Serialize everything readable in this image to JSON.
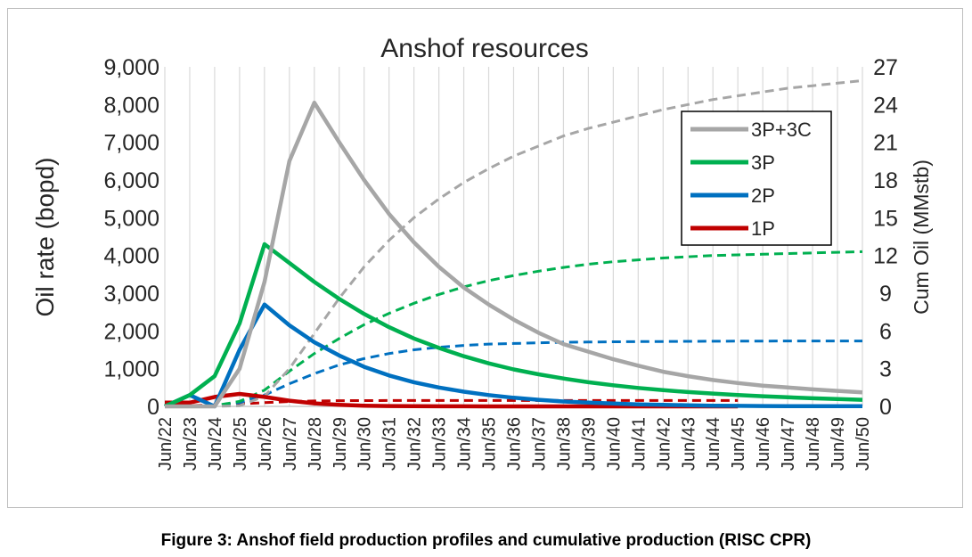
{
  "chart_data": {
    "type": "line",
    "title": "Anshof resources",
    "ylabel": "Oil rate (bopd)",
    "y2label": "Cum Oil (MMstb)",
    "ylim": [
      0,
      9000
    ],
    "y2lim": [
      0,
      27
    ],
    "xlim": [
      "Jun/22",
      "Jun/50"
    ],
    "x_ticks": [
      "Jun/22",
      "Jun/23",
      "Jun/24",
      "Jun/25",
      "Jun/26",
      "Jun/27",
      "Jun/28",
      "Jun/29",
      "Jun/30",
      "Jun/31",
      "Jun/32",
      "Jun/33",
      "Jun/34",
      "Jun/35",
      "Jun/36",
      "Jun/37",
      "Jun/38",
      "Jun/39",
      "Jun/40",
      "Jun/41",
      "Jun/42",
      "Jun/43",
      "Jun/44",
      "Jun/45",
      "Jun/46",
      "Jun/47",
      "Jun/48",
      "Jun/49",
      "Jun/50"
    ],
    "y_ticks": [
      "0",
      "1,000",
      "2,000",
      "3,000",
      "4,000",
      "5,000",
      "6,000",
      "7,000",
      "8,000",
      "9,000"
    ],
    "y2_ticks": [
      "0",
      "3",
      "6",
      "9",
      "12",
      "15",
      "18",
      "21",
      "24",
      "27"
    ],
    "grid": "vertical",
    "legend_position": "top-right",
    "series": [
      {
        "name": "3P+3C",
        "color": "#a6a6a6",
        "rate": [
          [
            "Jun/22",
            0
          ],
          [
            "Jun/23",
            0
          ],
          [
            "Jun/24",
            0
          ],
          [
            "Jun/25",
            1000
          ],
          [
            "Jun/26",
            3300
          ],
          [
            "Jun/27",
            6500
          ],
          [
            "Jun/28",
            8050
          ],
          [
            "Jun/29",
            7000
          ],
          [
            "Jun/30",
            6000
          ],
          [
            "Jun/31",
            5100
          ],
          [
            "Jun/32",
            4350
          ],
          [
            "Jun/33",
            3700
          ],
          [
            "Jun/34",
            3150
          ],
          [
            "Jun/35",
            2700
          ],
          [
            "Jun/36",
            2300
          ],
          [
            "Jun/37",
            1950
          ],
          [
            "Jun/38",
            1650
          ],
          [
            "Jun/39",
            1450
          ],
          [
            "Jun/40",
            1250
          ],
          [
            "Jun/41",
            1080
          ],
          [
            "Jun/42",
            920
          ],
          [
            "Jun/43",
            800
          ],
          [
            "Jun/44",
            700
          ],
          [
            "Jun/45",
            620
          ],
          [
            "Jun/46",
            550
          ],
          [
            "Jun/47",
            500
          ],
          [
            "Jun/48",
            450
          ],
          [
            "Jun/49",
            410
          ],
          [
            "Jun/50",
            370
          ]
        ],
        "cum": [
          [
            "Jun/22",
            0
          ],
          [
            "Jun/23",
            0
          ],
          [
            "Jun/24",
            0
          ],
          [
            "Jun/25",
            0.05
          ],
          [
            "Jun/26",
            0.8
          ],
          [
            "Jun/27",
            3.0
          ],
          [
            "Jun/28",
            5.8
          ],
          [
            "Jun/29",
            8.6
          ],
          [
            "Jun/30",
            11.1
          ],
          [
            "Jun/31",
            13.2
          ],
          [
            "Jun/32",
            15.0
          ],
          [
            "Jun/33",
            16.5
          ],
          [
            "Jun/34",
            17.8
          ],
          [
            "Jun/35",
            18.9
          ],
          [
            "Jun/36",
            19.9
          ],
          [
            "Jun/37",
            20.7
          ],
          [
            "Jun/38",
            21.5
          ],
          [
            "Jun/39",
            22.1
          ],
          [
            "Jun/40",
            22.6
          ],
          [
            "Jun/41",
            23.1
          ],
          [
            "Jun/42",
            23.6
          ],
          [
            "Jun/43",
            24.0
          ],
          [
            "Jun/44",
            24.4
          ],
          [
            "Jun/45",
            24.7
          ],
          [
            "Jun/46",
            25.0
          ],
          [
            "Jun/47",
            25.3
          ],
          [
            "Jun/48",
            25.5
          ],
          [
            "Jun/49",
            25.7
          ],
          [
            "Jun/50",
            25.9
          ]
        ]
      },
      {
        "name": "3P",
        "color": "#00b050",
        "rate": [
          [
            "Jun/22",
            0
          ],
          [
            "Jun/23",
            300
          ],
          [
            "Jun/24",
            800
          ],
          [
            "Jun/25",
            2200
          ],
          [
            "Jun/26",
            4300
          ],
          [
            "Jun/27",
            3800
          ],
          [
            "Jun/28",
            3300
          ],
          [
            "Jun/29",
            2850
          ],
          [
            "Jun/30",
            2450
          ],
          [
            "Jun/31",
            2100
          ],
          [
            "Jun/32",
            1800
          ],
          [
            "Jun/33",
            1550
          ],
          [
            "Jun/34",
            1330
          ],
          [
            "Jun/35",
            1140
          ],
          [
            "Jun/36",
            980
          ],
          [
            "Jun/37",
            850
          ],
          [
            "Jun/38",
            740
          ],
          [
            "Jun/39",
            640
          ],
          [
            "Jun/40",
            560
          ],
          [
            "Jun/41",
            490
          ],
          [
            "Jun/42",
            430
          ],
          [
            "Jun/43",
            380
          ],
          [
            "Jun/44",
            340
          ],
          [
            "Jun/45",
            300
          ],
          [
            "Jun/46",
            270
          ],
          [
            "Jun/47",
            240
          ],
          [
            "Jun/48",
            215
          ],
          [
            "Jun/49",
            195
          ],
          [
            "Jun/50",
            175
          ]
        ],
        "cum": [
          [
            "Jun/22",
            0
          ],
          [
            "Jun/23",
            0
          ],
          [
            "Jun/24",
            0.05
          ],
          [
            "Jun/25",
            0.4
          ],
          [
            "Jun/26",
            1.3
          ],
          [
            "Jun/27",
            2.8
          ],
          [
            "Jun/28",
            4.2
          ],
          [
            "Jun/29",
            5.4
          ],
          [
            "Jun/30",
            6.5
          ],
          [
            "Jun/31",
            7.4
          ],
          [
            "Jun/32",
            8.2
          ],
          [
            "Jun/33",
            8.9
          ],
          [
            "Jun/34",
            9.5
          ],
          [
            "Jun/35",
            10.0
          ],
          [
            "Jun/36",
            10.4
          ],
          [
            "Jun/37",
            10.75
          ],
          [
            "Jun/38",
            11.05
          ],
          [
            "Jun/39",
            11.3
          ],
          [
            "Jun/40",
            11.5
          ],
          [
            "Jun/41",
            11.65
          ],
          [
            "Jun/42",
            11.8
          ],
          [
            "Jun/43",
            11.9
          ],
          [
            "Jun/44",
            12.0
          ],
          [
            "Jun/45",
            12.05
          ],
          [
            "Jun/46",
            12.1
          ],
          [
            "Jun/47",
            12.15
          ],
          [
            "Jun/48",
            12.2
          ],
          [
            "Jun/49",
            12.25
          ],
          [
            "Jun/50",
            12.3
          ]
        ]
      },
      {
        "name": "2P",
        "color": "#0070c0",
        "rate": [
          [
            "Jun/22",
            0
          ],
          [
            "Jun/23",
            300
          ],
          [
            "Jun/24",
            0
          ],
          [
            "Jun/25",
            1500
          ],
          [
            "Jun/26",
            2700
          ],
          [
            "Jun/27",
            2150
          ],
          [
            "Jun/28",
            1700
          ],
          [
            "Jun/29",
            1350
          ],
          [
            "Jun/30",
            1050
          ],
          [
            "Jun/31",
            820
          ],
          [
            "Jun/32",
            640
          ],
          [
            "Jun/33",
            500
          ],
          [
            "Jun/34",
            390
          ],
          [
            "Jun/35",
            300
          ],
          [
            "Jun/36",
            230
          ],
          [
            "Jun/37",
            175
          ],
          [
            "Jun/38",
            130
          ],
          [
            "Jun/39",
            100
          ],
          [
            "Jun/40",
            75
          ],
          [
            "Jun/41",
            55
          ],
          [
            "Jun/42",
            40
          ],
          [
            "Jun/43",
            30
          ],
          [
            "Jun/44",
            20
          ],
          [
            "Jun/45",
            15
          ],
          [
            "Jun/46",
            10
          ],
          [
            "Jun/47",
            8
          ],
          [
            "Jun/48",
            6
          ],
          [
            "Jun/49",
            5
          ],
          [
            "Jun/50",
            5
          ]
        ],
        "cum": [
          [
            "Jun/22",
            0
          ],
          [
            "Jun/23",
            0
          ],
          [
            "Jun/24",
            0.05
          ],
          [
            "Jun/25",
            0.3
          ],
          [
            "Jun/26",
            0.9
          ],
          [
            "Jun/27",
            1.8
          ],
          [
            "Jun/28",
            2.6
          ],
          [
            "Jun/29",
            3.3
          ],
          [
            "Jun/30",
            3.8
          ],
          [
            "Jun/31",
            4.2
          ],
          [
            "Jun/32",
            4.5
          ],
          [
            "Jun/33",
            4.7
          ],
          [
            "Jun/34",
            4.85
          ],
          [
            "Jun/35",
            4.95
          ],
          [
            "Jun/36",
            5.0
          ],
          [
            "Jun/37",
            5.05
          ],
          [
            "Jun/38",
            5.1
          ],
          [
            "Jun/39",
            5.12
          ],
          [
            "Jun/40",
            5.14
          ],
          [
            "Jun/41",
            5.15
          ],
          [
            "Jun/42",
            5.16
          ],
          [
            "Jun/43",
            5.17
          ],
          [
            "Jun/44",
            5.18
          ],
          [
            "Jun/45",
            5.19
          ],
          [
            "Jun/46",
            5.19
          ],
          [
            "Jun/47",
            5.2
          ],
          [
            "Jun/48",
            5.2
          ],
          [
            "Jun/49",
            5.2
          ],
          [
            "Jun/50",
            5.2
          ]
        ]
      },
      {
        "name": "1P",
        "color": "#c00000",
        "rate": [
          [
            "Jun/22",
            100
          ],
          [
            "Jun/23",
            100
          ],
          [
            "Jun/24",
            250
          ],
          [
            "Jun/25",
            330
          ],
          [
            "Jun/26",
            250
          ],
          [
            "Jun/27",
            150
          ],
          [
            "Jun/28",
            80
          ],
          [
            "Jun/29",
            40
          ],
          [
            "Jun/30",
            20
          ],
          [
            "Jun/31",
            10
          ],
          [
            "Jun/32",
            5
          ],
          [
            "Jun/33",
            3
          ],
          [
            "Jun/34",
            2
          ],
          [
            "Jun/35",
            1
          ],
          [
            "Jun/36",
            1
          ],
          [
            "Jun/37",
            1
          ],
          [
            "Jun/38",
            0
          ],
          [
            "Jun/39",
            0
          ],
          [
            "Jun/40",
            0
          ],
          [
            "Jun/41",
            0
          ],
          [
            "Jun/42",
            0
          ],
          [
            "Jun/43",
            0
          ],
          [
            "Jun/44",
            0
          ],
          [
            "Jun/45",
            0
          ]
        ],
        "cum": [
          [
            "Jun/22",
            0
          ],
          [
            "Jun/23",
            0.05
          ],
          [
            "Jun/24",
            0.12
          ],
          [
            "Jun/25",
            0.2
          ],
          [
            "Jun/26",
            0.3
          ],
          [
            "Jun/27",
            0.38
          ],
          [
            "Jun/28",
            0.43
          ],
          [
            "Jun/29",
            0.45
          ],
          [
            "Jun/30",
            0.46
          ],
          [
            "Jun/31",
            0.47
          ],
          [
            "Jun/32",
            0.47
          ],
          [
            "Jun/33",
            0.47
          ],
          [
            "Jun/34",
            0.47
          ],
          [
            "Jun/35",
            0.47
          ],
          [
            "Jun/36",
            0.47
          ],
          [
            "Jun/37",
            0.47
          ],
          [
            "Jun/38",
            0.47
          ],
          [
            "Jun/39",
            0.47
          ],
          [
            "Jun/40",
            0.47
          ],
          [
            "Jun/41",
            0.47
          ],
          [
            "Jun/42",
            0.47
          ],
          [
            "Jun/43",
            0.47
          ],
          [
            "Jun/44",
            0.47
          ],
          [
            "Jun/45",
            0.47
          ]
        ]
      }
    ]
  },
  "caption": "Figure 3: Anshof field production profiles and cumulative production (RISC CPR)"
}
